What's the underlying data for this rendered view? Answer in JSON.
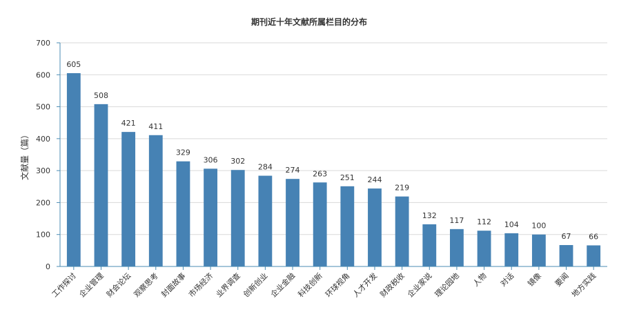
{
  "chart_data": {
    "type": "bar",
    "title": "期刊近十年文献所属栏目的分布",
    "xlabel": "",
    "ylabel": "文献量（篇）",
    "ylim": [
      0,
      700
    ],
    "yticks": [
      0,
      100,
      200,
      300,
      400,
      500,
      600,
      700
    ],
    "grid": true,
    "bar_color": "#4682b4",
    "categories": [
      "工作探讨",
      "企业管理",
      "财会论坛",
      "观察思考",
      "封面故事",
      "市场经济",
      "业界调查",
      "创新创业",
      "企业金融",
      "科技创新",
      "环球视角",
      "人才开发",
      "财政税收",
      "企业家说",
      "理论园地",
      "人物",
      "对话",
      "镜像",
      "要闻",
      "地方实践"
    ],
    "values": [
      605,
      508,
      421,
      411,
      329,
      306,
      302,
      284,
      274,
      263,
      251,
      244,
      219,
      132,
      117,
      112,
      104,
      100,
      67,
      66
    ]
  }
}
